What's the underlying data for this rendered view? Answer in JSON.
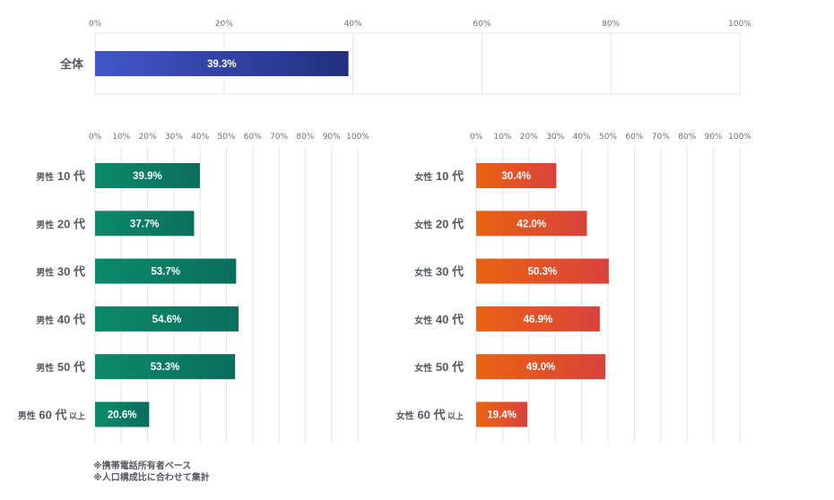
{
  "chart_data": [
    {
      "type": "bar",
      "orientation": "horizontal",
      "xlim": [
        0,
        100
      ],
      "tick_labels": [
        "0%",
        "20%",
        "40%",
        "60%",
        "80%",
        "100%"
      ],
      "categories": [
        "全体"
      ],
      "values": [
        39.3
      ],
      "value_labels": [
        "39.3%"
      ],
      "colors": [
        "#4156c9",
        "#23307f"
      ]
    },
    {
      "type": "bar",
      "orientation": "horizontal",
      "xlim": [
        0,
        100
      ],
      "tick_labels": [
        "0%",
        "10%",
        "20%",
        "30%",
        "40%",
        "50%",
        "60%",
        "70%",
        "80%",
        "90%",
        "100%"
      ],
      "categories": [
        {
          "prefix": "男性",
          "num": "10",
          "suffix": "代",
          "extra": ""
        },
        {
          "prefix": "男性",
          "num": "20",
          "suffix": "代",
          "extra": ""
        },
        {
          "prefix": "男性",
          "num": "30",
          "suffix": "代",
          "extra": ""
        },
        {
          "prefix": "男性",
          "num": "40",
          "suffix": "代",
          "extra": ""
        },
        {
          "prefix": "男性",
          "num": "50",
          "suffix": "代",
          "extra": ""
        },
        {
          "prefix": "男性",
          "num": "60",
          "suffix": "代",
          "extra": "以上"
        }
      ],
      "values": [
        39.9,
        37.7,
        53.7,
        54.6,
        53.3,
        20.6
      ],
      "value_labels": [
        "39.9%",
        "37.7%",
        "53.7%",
        "54.6%",
        "53.3%",
        "20.6%"
      ],
      "colors": [
        "#0b8a6a",
        "#0b6e5d"
      ]
    },
    {
      "type": "bar",
      "orientation": "horizontal",
      "xlim": [
        0,
        100
      ],
      "tick_labels": [
        "0%",
        "10%",
        "20%",
        "30%",
        "40%",
        "50%",
        "60%",
        "70%",
        "80%",
        "90%",
        "100%"
      ],
      "categories": [
        {
          "prefix": "女性",
          "num": "10",
          "suffix": "代",
          "extra": ""
        },
        {
          "prefix": "女性",
          "num": "20",
          "suffix": "代",
          "extra": ""
        },
        {
          "prefix": "女性",
          "num": "30",
          "suffix": "代",
          "extra": ""
        },
        {
          "prefix": "女性",
          "num": "40",
          "suffix": "代",
          "extra": ""
        },
        {
          "prefix": "女性",
          "num": "50",
          "suffix": "代",
          "extra": ""
        },
        {
          "prefix": "女性",
          "num": "60",
          "suffix": "代",
          "extra": "以上"
        }
      ],
      "values": [
        30.4,
        42.0,
        50.3,
        46.9,
        49.0,
        19.4
      ],
      "value_labels": [
        "30.4%",
        "42.0%",
        "50.3%",
        "46.9%",
        "49.0%",
        "19.4%"
      ],
      "colors": [
        "#ea6312",
        "#d9423c"
      ]
    }
  ],
  "notes": [
    "※携帯電話所有者ベース",
    "※人口構成比に合わせて集計"
  ]
}
